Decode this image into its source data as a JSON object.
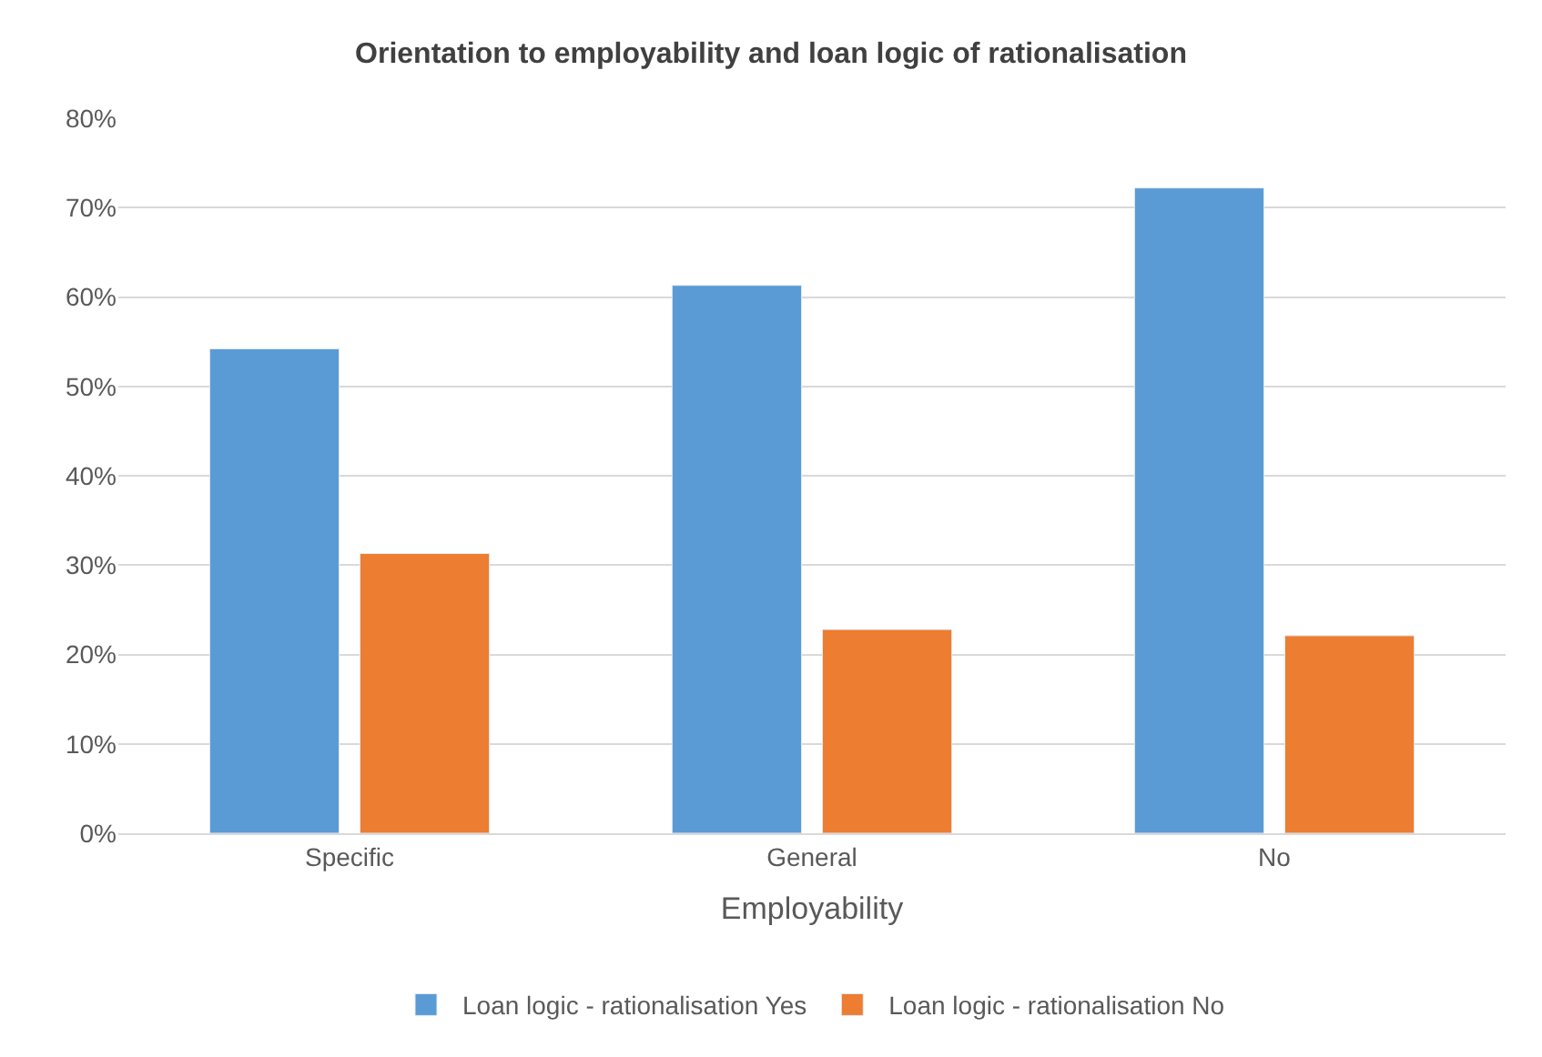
{
  "chart_data": {
    "type": "bar",
    "title": "Orientation to employability and loan logic of rationalisation",
    "xlabel": "Employability",
    "categories": [
      "Specific",
      "General",
      "No"
    ],
    "series": [
      {
        "name": "Loan logic - rationalisation Yes",
        "color": "#5b9bd5",
        "values": [
          54.2,
          61.3,
          72.2
        ]
      },
      {
        "name": "Loan logic - rationalisation No",
        "color": "#ed7d31",
        "values": [
          31.3,
          22.8,
          22.1
        ]
      }
    ],
    "ylim": [
      0,
      80
    ],
    "yticks": [
      {
        "value": 0,
        "label": "0%"
      },
      {
        "value": 10,
        "label": "10%"
      },
      {
        "value": 20,
        "label": "20%"
      },
      {
        "value": 30,
        "label": "30%"
      },
      {
        "value": 40,
        "label": "40%"
      },
      {
        "value": 50,
        "label": "50%"
      },
      {
        "value": 60,
        "label": "60%"
      },
      {
        "value": 70,
        "label": "70%"
      },
      {
        "value": 80,
        "label": "80%"
      }
    ],
    "grid": "y",
    "legend": "bottom"
  }
}
